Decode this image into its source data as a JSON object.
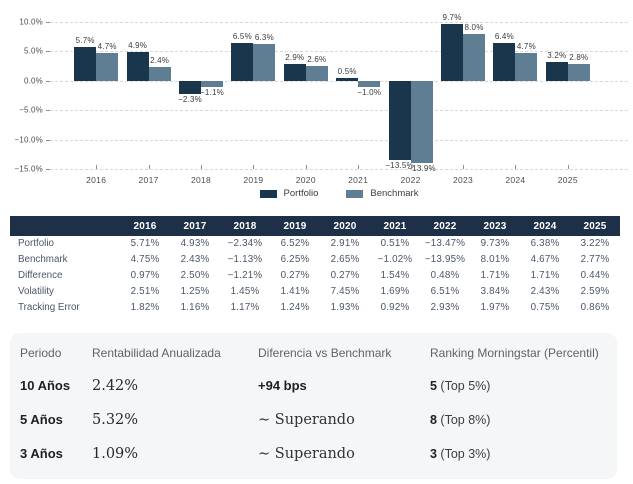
{
  "colors": {
    "portfolio": "#1a364d",
    "benchmark": "#5f7e93",
    "table_header_bg": "#1e3048",
    "card_bg": "#f5f6f8",
    "gridline": "#d8d8d8"
  },
  "chart_data": {
    "type": "bar",
    "categories": [
      "2016",
      "2017",
      "2018",
      "2019",
      "2020",
      "2021",
      "2022",
      "2023",
      "2024",
      "2025"
    ],
    "series": [
      {
        "name": "Portfolio",
        "color": "#1a364d",
        "values": [
          5.7,
          4.9,
          -2.3,
          6.5,
          2.9,
          0.5,
          -13.5,
          9.7,
          6.4,
          3.2
        ],
        "labels": [
          "5.7%",
          "4.9%",
          "−2.3%",
          "6.5%",
          "2.9%",
          "0.5%",
          "−13.5%",
          "9.7%",
          "6.4%",
          "3.2%"
        ]
      },
      {
        "name": "Benchmark",
        "color": "#5f7e93",
        "values": [
          4.7,
          2.4,
          -1.1,
          6.3,
          2.6,
          -1.0,
          -13.9,
          8.0,
          4.7,
          2.8
        ],
        "labels": [
          "4.7%",
          "2.4%",
          "−1.1%",
          "6.3%",
          "2.6%",
          "−1.0%",
          "−13.9%",
          "8.0%",
          "4.7%",
          "2.8%"
        ]
      }
    ],
    "ylim": [
      -15,
      10
    ],
    "yticks": [
      {
        "value": 10,
        "label": "10.0%"
      },
      {
        "value": 5,
        "label": "5.0%"
      },
      {
        "value": 0,
        "label": "0.0%"
      },
      {
        "value": -5,
        "label": "−5.0%"
      },
      {
        "value": -10,
        "label": "−10.0%"
      },
      {
        "value": -15,
        "label": "−15.0%"
      }
    ],
    "grid": "horizontal-dashed",
    "legend_position": "bottom",
    "legend": [
      "Portfolio",
      "Benchmark"
    ]
  },
  "table": {
    "columns": [
      "",
      "2016",
      "2017",
      "2018",
      "2019",
      "2020",
      "2021",
      "2022",
      "2023",
      "2024",
      "2025"
    ],
    "rows": [
      {
        "label": "Portfolio",
        "values": [
          "5.71%",
          "4.93%",
          "−2.34%",
          "6.52%",
          "2.91%",
          "0.51%",
          "−13.47%",
          "9.73%",
          "6.38%",
          "3.22%"
        ]
      },
      {
        "label": "Benchmark",
        "values": [
          "4.75%",
          "2.43%",
          "−1.13%",
          "6.25%",
          "2.65%",
          "−1.02%",
          "−13.95%",
          "8.01%",
          "4.67%",
          "2.77%"
        ]
      },
      {
        "label": "Difference",
        "values": [
          "0.97%",
          "2.50%",
          "−1.21%",
          "0.27%",
          "0.27%",
          "1.54%",
          "0.48%",
          "1.71%",
          "1.71%",
          "0.44%"
        ]
      },
      {
        "label": "Volatility",
        "values": [
          "2.51%",
          "1.25%",
          "1.45%",
          "1.41%",
          "7.45%",
          "1.69%",
          "6.51%",
          "3.84%",
          "2.43%",
          "2.59%"
        ]
      },
      {
        "label": "Tracking Error",
        "values": [
          "1.82%",
          "1.16%",
          "1.17%",
          "1.24%",
          "1.93%",
          "0.92%",
          "2.93%",
          "1.97%",
          "0.75%",
          "0.86%"
        ]
      }
    ]
  },
  "summary": {
    "headers": [
      "Periodo",
      "Rentabilidad Anualizada",
      "Diferencia vs Benchmark",
      "Ranking Morningstar (Percentil)"
    ],
    "rows": [
      {
        "period": "10 Años",
        "return": "2.42%",
        "diff": "+94 bps",
        "diff_style": "bold",
        "rank": "5",
        "rank_rest": " (Top 5%)"
      },
      {
        "period": "5 Años",
        "return": "5.32%",
        "diff": "∼ Superando",
        "diff_style": "serif",
        "rank": "8",
        "rank_rest": " (Top 8%)"
      },
      {
        "period": "3 Años",
        "return": "1.09%",
        "diff": "∼ Superando",
        "diff_style": "serif",
        "rank": "3",
        "rank_rest": " (Top 3%)"
      }
    ]
  }
}
